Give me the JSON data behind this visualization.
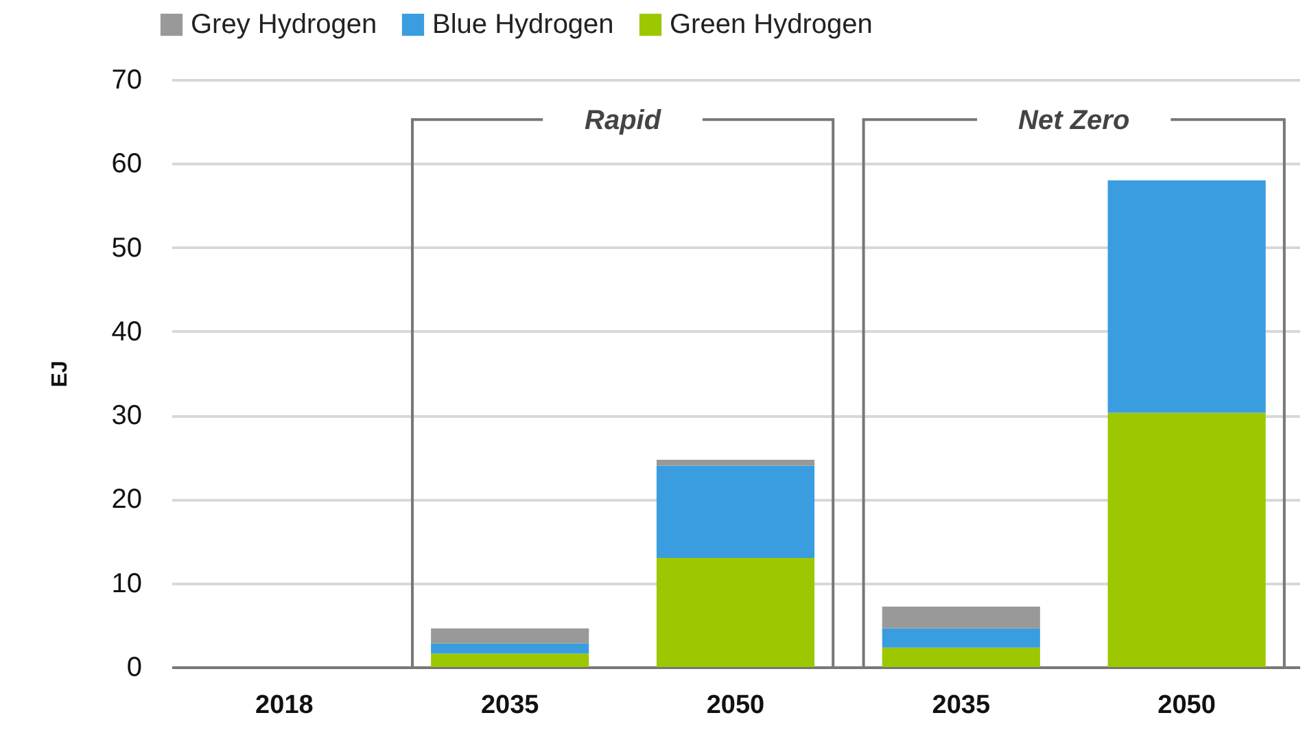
{
  "chart_data": {
    "type": "bar",
    "stacked": true,
    "ylabel": "EJ",
    "categories": [
      "2018",
      "2035",
      "2050",
      "2035",
      "2050"
    ],
    "series": [
      {
        "name": "Green Hydrogen",
        "color": "#9bc800",
        "values": [
          0,
          1.6,
          13,
          2.3,
          30.3
        ]
      },
      {
        "name": "Blue Hydrogen",
        "color": "#3a9de0",
        "values": [
          0,
          1.2,
          11,
          2.3,
          27.7
        ]
      },
      {
        "name": "Grey Hydrogen",
        "color": "#999999",
        "values": [
          0,
          1.8,
          0.7,
          2.6,
          0
        ]
      }
    ],
    "ylim": [
      0,
      70
    ],
    "yticks": [
      0,
      10,
      20,
      30,
      40,
      50,
      60,
      70
    ],
    "grid": "y",
    "legend": "top left",
    "annotations": [
      "Rapid",
      "Net Zero"
    ]
  }
}
